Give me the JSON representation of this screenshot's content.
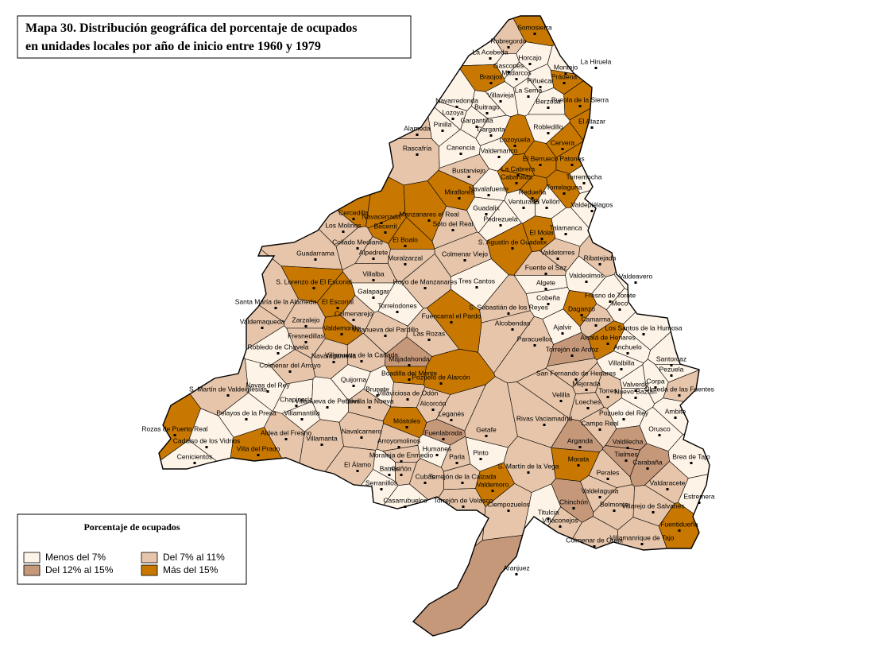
{
  "title": {
    "lines": [
      "Mapa 30. Distribución geográfica del porcentaje de ocupados",
      "en unidades locales por año de inicio entre 1960 y 1979"
    ]
  },
  "legend": {
    "title": "Porcentaje de ocupados",
    "items": [
      {
        "label": "Menos del 7%",
        "color": "#fdf3e6"
      },
      {
        "label": "Del 7% al 11%",
        "color": "#e6c5aa"
      },
      {
        "label": "Del 12% al 15%",
        "color": "#c6987a"
      },
      {
        "label": "Más del 15%",
        "color": "#c87800"
      }
    ]
  },
  "places": [
    {
      "name": "Somosierra",
      "class": 3
    },
    {
      "name": "Robregordo",
      "class": 1
    },
    {
      "name": "La Acebeda",
      "class": 0
    },
    {
      "name": "Horcajo",
      "class": 0
    },
    {
      "name": "Montejo",
      "class": 0
    },
    {
      "name": "La Hiruela",
      "class": 0
    },
    {
      "name": "Madarcos",
      "class": 0
    },
    {
      "name": "Prádena",
      "class": 3
    },
    {
      "name": "Braojos",
      "class": 3
    },
    {
      "name": "Piñuécar",
      "class": 0
    },
    {
      "name": "Villavieja",
      "class": 0
    },
    {
      "name": "La Serna",
      "class": 0
    },
    {
      "name": "Puebla de la Sierra",
      "class": 3
    },
    {
      "name": "Navarredonda",
      "class": 0
    },
    {
      "name": "Berzosa",
      "class": 0
    },
    {
      "name": "Gascones",
      "class": 0
    },
    {
      "name": "Buitrago",
      "class": 0
    },
    {
      "name": "Lozoya",
      "class": 0
    },
    {
      "name": "Gargantilla",
      "class": 0
    },
    {
      "name": "Pinilla",
      "class": 0
    },
    {
      "name": "Garganta",
      "class": 0
    },
    {
      "name": "Robledillo",
      "class": 0
    },
    {
      "name": "El Atazar",
      "class": 3
    },
    {
      "name": "Cervera",
      "class": 3
    },
    {
      "name": "Alameda",
      "class": 1
    },
    {
      "name": "Lozoyuela",
      "class": 3
    },
    {
      "name": "Canencia",
      "class": 0
    },
    {
      "name": "Valdemanco",
      "class": 0
    },
    {
      "name": "Rascafría",
      "class": 1
    },
    {
      "name": "El Berrueco",
      "class": 3
    },
    {
      "name": "Patones",
      "class": 3
    },
    {
      "name": "Bustarviejo",
      "class": 1
    },
    {
      "name": "La Cabrera",
      "class": 3
    },
    {
      "name": "Cabanillas",
      "class": 3
    },
    {
      "name": "Torremocha",
      "class": 0
    },
    {
      "name": "Miraflores",
      "class": 3
    },
    {
      "name": "Navalafuente",
      "class": 0
    },
    {
      "name": "Redueña",
      "class": 3
    },
    {
      "name": "Torrelaguna",
      "class": 3
    },
    {
      "name": "Venturada",
      "class": 0
    },
    {
      "name": "El Vellón",
      "class": 0
    },
    {
      "name": "Guadalix",
      "class": 0
    },
    {
      "name": "Valdepiélagos",
      "class": 0
    },
    {
      "name": "Cercedilla",
      "class": 3
    },
    {
      "name": "Navacerrada",
      "class": 3
    },
    {
      "name": "Manzanares el Real",
      "class": 3
    },
    {
      "name": "Becerril",
      "class": 3
    },
    {
      "name": "Soto del Real",
      "class": 1
    },
    {
      "name": "Pedrezuela",
      "class": 0
    },
    {
      "name": "Los Molinos",
      "class": 1
    },
    {
      "name": "El Molar",
      "class": 3
    },
    {
      "name": "Talamanca",
      "class": 0
    },
    {
      "name": "El Boalo",
      "class": 3
    },
    {
      "name": "Collado Mediano",
      "class": 1
    },
    {
      "name": "S. Agustín de Guadalix",
      "class": 3
    },
    {
      "name": "Guadarrama",
      "class": 1
    },
    {
      "name": "Alpedrete",
      "class": 1
    },
    {
      "name": "Moralzarzal",
      "class": 1
    },
    {
      "name": "Colmenar Viejo",
      "class": 1
    },
    {
      "name": "Valdetorres",
      "class": 1
    },
    {
      "name": "Ribatejada",
      "class": 1
    },
    {
      "name": "Fuente el Saz",
      "class": 1
    },
    {
      "name": "Villalba",
      "class": 1
    },
    {
      "name": "Valdeavero",
      "class": 0
    },
    {
      "name": "S. Lorenzo de El Escorial",
      "class": 3
    },
    {
      "name": "Hoyo de Manzanares",
      "class": 1
    },
    {
      "name": "Tres Cantos",
      "class": 0
    },
    {
      "name": "Algete",
      "class": 0
    },
    {
      "name": "Valdeolmos",
      "class": 0
    },
    {
      "name": "Fresno de Torote",
      "class": 0
    },
    {
      "name": "Galapagar",
      "class": 0
    },
    {
      "name": "Santa María de la Alameda",
      "class": 1
    },
    {
      "name": "El Escorial",
      "class": 3
    },
    {
      "name": "Torrelodones",
      "class": 0
    },
    {
      "name": "Fuencarral el Pardo",
      "class": 3
    },
    {
      "name": "Cobeña",
      "class": 0
    },
    {
      "name": "S. Sebastián de los Reyes",
      "class": 1
    },
    {
      "name": "Meco",
      "class": 0
    },
    {
      "name": "Daganzo",
      "class": 3
    },
    {
      "name": "Zarzalejo",
      "class": 1
    },
    {
      "name": "Colmenarejo",
      "class": 1
    },
    {
      "name": "Camarma",
      "class": 1
    },
    {
      "name": "Valdemaqueda",
      "class": 1
    },
    {
      "name": "Los Santos de la Humosa",
      "class": 0
    },
    {
      "name": "Valdemorillo",
      "class": 3
    },
    {
      "name": "Villanueva del Pardillo",
      "class": 1
    },
    {
      "name": "Alcobendas",
      "class": 1
    },
    {
      "name": "Ajalvir",
      "class": 0
    },
    {
      "name": "Las Rozas",
      "class": 1
    },
    {
      "name": "Fresnedillas",
      "class": 1
    },
    {
      "name": "Alcalá de Henares",
      "class": 3
    },
    {
      "name": "Paracuellos",
      "class": 1
    },
    {
      "name": "Robledo de Chavela",
      "class": 0
    },
    {
      "name": "Torrejón de Ardoz",
      "class": 2
    },
    {
      "name": "Anchuelo",
      "class": 0
    },
    {
      "name": "Villanueva de la Cañada",
      "class": 1
    },
    {
      "name": "Majadahonda",
      "class": 2
    },
    {
      "name": "Santorcaz",
      "class": 0
    },
    {
      "name": "Colmenar del Arroyo",
      "class": 1
    },
    {
      "name": "Navalagamella",
      "class": 1
    },
    {
      "name": "Villalbilla",
      "class": 0
    },
    {
      "name": "Pezuela",
      "class": 0
    },
    {
      "name": "Boadilla del Monte",
      "class": 3
    },
    {
      "name": "Pozuelo de Alarcón",
      "class": 3
    },
    {
      "name": "San Fernando de Henares",
      "class": 1
    },
    {
      "name": "Corpa",
      "class": 0
    },
    {
      "name": "Quijorna",
      "class": 0
    },
    {
      "name": "Mejorada",
      "class": 1
    },
    {
      "name": "Valverde",
      "class": 0
    },
    {
      "name": "Nuevo Baztán",
      "class": 0
    },
    {
      "name": "Olmeda de las Fuentes",
      "class": 1
    },
    {
      "name": "Navas del Rey",
      "class": 0
    },
    {
      "name": "S. Martín de Valdeiglesias",
      "class": 1
    },
    {
      "name": "Brunete",
      "class": 0
    },
    {
      "name": "Velilla",
      "class": 1
    },
    {
      "name": "Torres",
      "class": 1
    },
    {
      "name": "Villaviciosa de Odón",
      "class": 1
    },
    {
      "name": "Loeches",
      "class": 1
    },
    {
      "name": "Sevilla la Nueva",
      "class": 1
    },
    {
      "name": "Villanueva de Perales",
      "class": 0
    },
    {
      "name": "Chapinería",
      "class": 0
    },
    {
      "name": "Pelayos de la Presa",
      "class": 0
    },
    {
      "name": "Alcorcón",
      "class": 1
    },
    {
      "name": "Pozuelo del Rey",
      "class": 0
    },
    {
      "name": "Ambite",
      "class": 0
    },
    {
      "name": "Villamantilla",
      "class": 0
    },
    {
      "name": "Leganés",
      "class": 1
    },
    {
      "name": "Rivas Vaciamadrid",
      "class": 1
    },
    {
      "name": "Móstoles",
      "class": 3
    },
    {
      "name": "Campo Real",
      "class": 1
    },
    {
      "name": "Orusco",
      "class": 0
    },
    {
      "name": "Aldea del Fresno",
      "class": 1
    },
    {
      "name": "Rozas de Puerto Real",
      "class": 3
    },
    {
      "name": "Navalcarnero",
      "class": 1
    },
    {
      "name": "Fuenlabrada",
      "class": 2
    },
    {
      "name": "Getafe",
      "class": 1
    },
    {
      "name": "Cadalso de los Vidrios",
      "class": 0
    },
    {
      "name": "Arroyomolinos",
      "class": 1
    },
    {
      "name": "Arganda",
      "class": 2
    },
    {
      "name": "Valdilecha",
      "class": 2
    },
    {
      "name": "Villamanta",
      "class": 1
    },
    {
      "name": "Villa del Prado",
      "class": 3
    },
    {
      "name": "Humanes",
      "class": 0
    },
    {
      "name": "Parla",
      "class": 1
    },
    {
      "name": "Pinto",
      "class": 0
    },
    {
      "name": "Moraleja de Enmedio",
      "class": 1
    },
    {
      "name": "Tielmes",
      "class": 2
    },
    {
      "name": "Carabaña",
      "class": 2
    },
    {
      "name": "Brea de Tajo",
      "class": 0
    },
    {
      "name": "Cenicientos",
      "class": 0
    },
    {
      "name": "Morata",
      "class": 3
    },
    {
      "name": "El Álamo",
      "class": 1
    },
    {
      "name": "S. Martín de la Vega",
      "class": 1
    },
    {
      "name": "Batres",
      "class": 0
    },
    {
      "name": "Griñón",
      "class": 1
    },
    {
      "name": "Cubas",
      "class": 1
    },
    {
      "name": "Torrejón de la Calzada",
      "class": 1
    },
    {
      "name": "Perales",
      "class": 1
    },
    {
      "name": "Serranillos",
      "class": 0
    },
    {
      "name": "Valdaracete",
      "class": 1
    },
    {
      "name": "Valdemoro",
      "class": 3
    },
    {
      "name": "Estremera",
      "class": 0
    },
    {
      "name": "Torrejón de Velasco",
      "class": 1
    },
    {
      "name": "Casarrubuelos",
      "class": 0
    },
    {
      "name": "Valdelaguna",
      "class": 1
    },
    {
      "name": "Ciempozuelos",
      "class": 1
    },
    {
      "name": "Chinchón",
      "class": 2
    },
    {
      "name": "Villarejo de Salvanés",
      "class": 1
    },
    {
      "name": "Belmonte",
      "class": 1
    },
    {
      "name": "Titulcia",
      "class": 0
    },
    {
      "name": "Villaconejos",
      "class": 1
    },
    {
      "name": "Fuentidueña",
      "class": 3
    },
    {
      "name": "Colmenar de Oreja",
      "class": 1
    },
    {
      "name": "Villamanrique de Tajo",
      "class": 1
    },
    {
      "name": "Aranjuez",
      "class": 2
    }
  ]
}
